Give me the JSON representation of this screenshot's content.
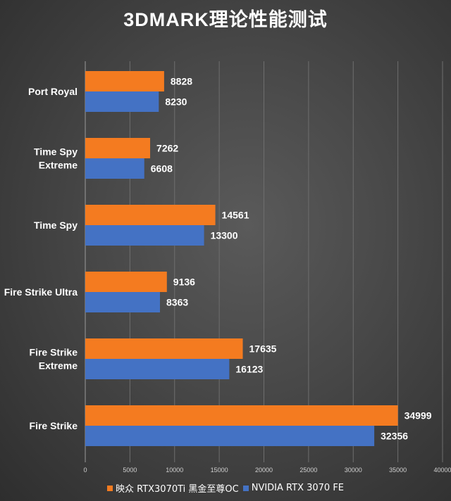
{
  "colors": {
    "series1": "#f47b20",
    "series2": "#4472c4"
  },
  "chart_data": {
    "type": "bar",
    "orientation": "horizontal",
    "title": "3DMARK理论性能测试",
    "categories": [
      "Port Royal",
      "Time Spy Extreme",
      "Time Spy",
      "Fire Strike Ultra",
      "Fire Strike Extreme",
      "Fire Strike"
    ],
    "category_display": [
      [
        "Port Royal"
      ],
      [
        "Time Spy",
        "Extreme"
      ],
      [
        "Time Spy"
      ],
      [
        "Fire Strike Ultra"
      ],
      [
        "Fire Strike",
        "Extreme"
      ],
      [
        "Fire Strike"
      ]
    ],
    "series": [
      {
        "name": "映众 RTX3070Ti 黑金至尊OC",
        "values": [
          8828,
          7262,
          14561,
          9136,
          17635,
          34999
        ]
      },
      {
        "name": "NVIDIA RTX 3070 FE",
        "values": [
          8230,
          6608,
          13300,
          8363,
          16123,
          32356
        ]
      }
    ],
    "xlim": [
      0,
      40000
    ],
    "xticks": [
      0,
      5000,
      10000,
      15000,
      20000,
      25000,
      30000,
      35000,
      40000
    ],
    "grid": true,
    "legend_position": "bottom"
  }
}
